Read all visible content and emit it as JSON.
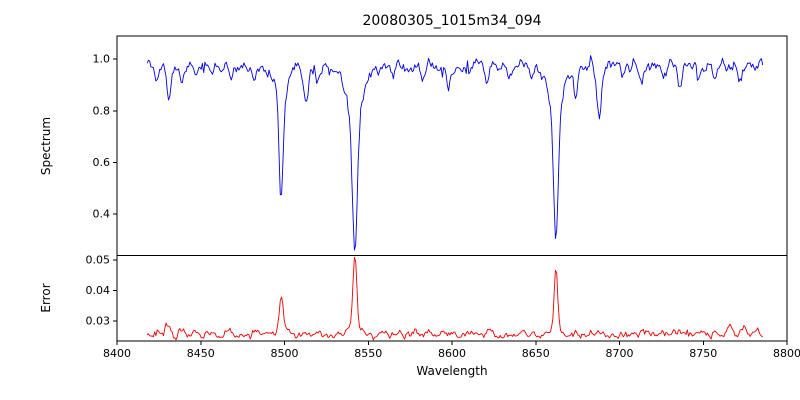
{
  "chart_data": {
    "type": "line",
    "title": "20080305_1015m34_094",
    "xlabel": "Wavelength",
    "xlim": [
      8400,
      8800
    ],
    "x_data_range": [
      8418,
      8786
    ],
    "x_tick_values": [
      8400,
      8450,
      8500,
      8550,
      8600,
      8650,
      8700,
      8750,
      8800
    ],
    "x_tick_labels": [
      "8400",
      "8450",
      "8500",
      "8550",
      "8600",
      "8650",
      "8700",
      "8750",
      "8800"
    ],
    "grid": false,
    "seed": 12,
    "panels": [
      {
        "name": "spectrum",
        "ylabel": "Spectrum",
        "color": "#0000e0",
        "ylim": [
          0.24,
          1.09
        ],
        "y_tick_values": [
          0.4,
          0.6,
          0.8,
          1.0
        ],
        "y_tick_labels": [
          "0.4",
          "0.6",
          "0.8",
          "1.0"
        ],
        "continuum": 0.975,
        "noise_sigma": 0.013,
        "absorption_lines": [
          {
            "c": 8498,
            "d": 0.4,
            "w": 1.2
          },
          {
            "c": 8498,
            "d": 0.11,
            "w": 3.5
          },
          {
            "c": 8542,
            "d": 0.52,
            "w": 1.6
          },
          {
            "c": 8542,
            "d": 0.17,
            "w": 5.0
          },
          {
            "c": 8662,
            "d": 0.49,
            "w": 1.4
          },
          {
            "c": 8662,
            "d": 0.17,
            "w": 4.5
          },
          {
            "c": 8424,
            "d": 0.05,
            "w": 1.2
          },
          {
            "c": 8431,
            "d": 0.12,
            "w": 1.3
          },
          {
            "c": 8439,
            "d": 0.08,
            "w": 1.2
          },
          {
            "c": 8447,
            "d": 0.05,
            "w": 1.1
          },
          {
            "c": 8457,
            "d": 0.04,
            "w": 1.1
          },
          {
            "c": 8468,
            "d": 0.07,
            "w": 1.2
          },
          {
            "c": 8482,
            "d": 0.05,
            "w": 1.1
          },
          {
            "c": 8513,
            "d": 0.12,
            "w": 1.4
          },
          {
            "c": 8520,
            "d": 0.07,
            "w": 1.2
          },
          {
            "c": 8528,
            "d": 0.04,
            "w": 1.1
          },
          {
            "c": 8556,
            "d": 0.04,
            "w": 1.1
          },
          {
            "c": 8565,
            "d": 0.05,
            "w": 1.1
          },
          {
            "c": 8582,
            "d": 0.05,
            "w": 1.1
          },
          {
            "c": 8598,
            "d": 0.07,
            "w": 1.2
          },
          {
            "c": 8611,
            "d": 0.04,
            "w": 1.1
          },
          {
            "c": 8621,
            "d": 0.07,
            "w": 1.2
          },
          {
            "c": 8634,
            "d": 0.04,
            "w": 1.0
          },
          {
            "c": 8648,
            "d": 0.05,
            "w": 1.1
          },
          {
            "c": 8674,
            "d": 0.1,
            "w": 1.3
          },
          {
            "c": 8688,
            "d": 0.2,
            "w": 1.5
          },
          {
            "c": 8702,
            "d": 0.05,
            "w": 1.1
          },
          {
            "c": 8713,
            "d": 0.07,
            "w": 1.2
          },
          {
            "c": 8727,
            "d": 0.05,
            "w": 1.1
          },
          {
            "c": 8736,
            "d": 0.07,
            "w": 1.2
          },
          {
            "c": 8747,
            "d": 0.05,
            "w": 1.1
          },
          {
            "c": 8757,
            "d": 0.06,
            "w": 1.1
          },
          {
            "c": 8772,
            "d": 0.05,
            "w": 1.1
          }
        ]
      },
      {
        "name": "error",
        "ylabel": "Error",
        "color": "#ee0000",
        "ylim": [
          0.0235,
          0.0515
        ],
        "y_tick_values": [
          0.03,
          0.04,
          0.05
        ],
        "y_tick_labels": [
          "0.03",
          "0.04",
          "0.05"
        ],
        "baseline": 0.0255,
        "noise_sigma": 0.0006,
        "peaks": [
          {
            "c": 8498,
            "d": 0.0095,
            "w": 1.0
          },
          {
            "c": 8498,
            "d": 0.002,
            "w": 3.0
          },
          {
            "c": 8542,
            "d": 0.023,
            "w": 1.1
          },
          {
            "c": 8542,
            "d": 0.003,
            "w": 3.5
          },
          {
            "c": 8662,
            "d": 0.019,
            "w": 1.0
          },
          {
            "c": 8662,
            "d": 0.003,
            "w": 3.0
          },
          {
            "c": 8430,
            "d": 0.0035,
            "w": 1.5
          },
          {
            "c": 8439,
            "d": 0.0015,
            "w": 1.2
          },
          {
            "c": 8467,
            "d": 0.0015,
            "w": 1.2
          },
          {
            "c": 8482,
            "d": 0.001,
            "w": 1.2
          },
          {
            "c": 8513,
            "d": 0.002,
            "w": 1.3
          },
          {
            "c": 8520,
            "d": 0.001,
            "w": 1.1
          },
          {
            "c": 8598,
            "d": 0.001,
            "w": 1.2
          },
          {
            "c": 8621,
            "d": 0.001,
            "w": 1.2
          },
          {
            "c": 8674,
            "d": 0.0012,
            "w": 1.2
          },
          {
            "c": 8688,
            "d": 0.0018,
            "w": 1.4
          },
          {
            "c": 8713,
            "d": 0.001,
            "w": 1.2
          },
          {
            "c": 8736,
            "d": 0.0012,
            "w": 1.2
          },
          {
            "c": 8747,
            "d": 0.001,
            "w": 1.1
          },
          {
            "c": 8757,
            "d": 0.0015,
            "w": 1.2
          },
          {
            "c": 8766,
            "d": 0.004,
            "w": 1.4
          },
          {
            "c": 8774,
            "d": 0.003,
            "w": 1.3
          },
          {
            "c": 8782,
            "d": 0.002,
            "w": 1.2
          }
        ]
      }
    ]
  }
}
